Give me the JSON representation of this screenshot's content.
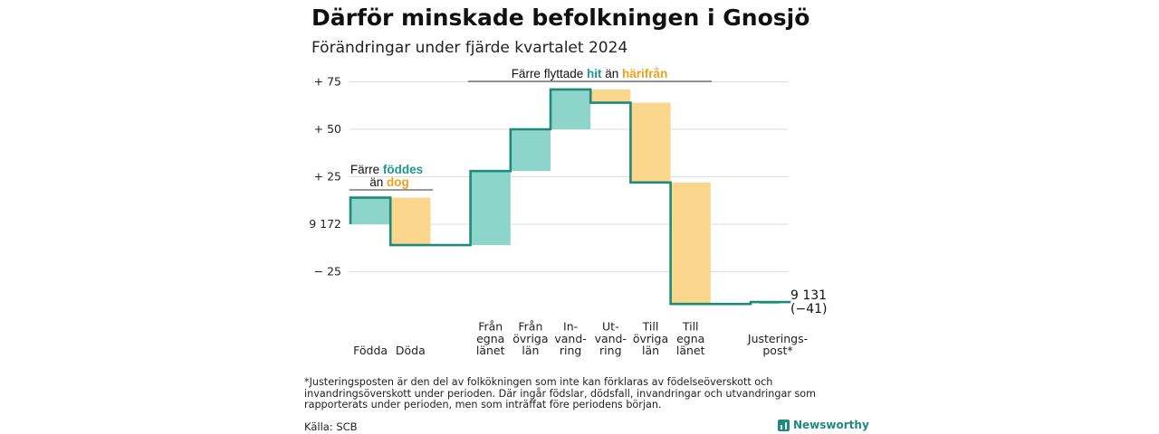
{
  "header": {
    "title": "Därför minskade befolkningen i Gnosjö",
    "subtitle": "Förändringar under fjärde kvartalet 2024"
  },
  "colors": {
    "increase": "#8dd5cb",
    "decrease": "#fbd68d",
    "line": "#1d8a7a",
    "teal_text": "#1d9a8b",
    "orange_text": "#f0a11a",
    "grid": "#dddddd"
  },
  "annotations": {
    "births_deaths": {
      "line1_prefix": "Färre",
      "line1_highlight": "föddes",
      "line2_prefix": "än",
      "line2_highlight": "dog"
    },
    "migration": {
      "prefix": "Färre flyttade",
      "highlight1": "hit",
      "middle": "än",
      "highlight2": "härifrån"
    }
  },
  "end_label": {
    "value": "9 131",
    "change": "(−41)"
  },
  "footer": {
    "footnote": "*Justeringsposten är den del av folkökningen som inte kan förklaras av födelseöverskott och invandringsöverskott under perioden. Där ingår födslar, dödsfall, invandringar och utvandringar som rapporterats under perioden, men som inträffat före periodens början.",
    "source": "Källa: SCB",
    "brand": "Newsworthy"
  },
  "chart_data": {
    "type": "waterfall",
    "start_value": 9172,
    "end_value": 9131,
    "total_change": -41,
    "y_ticks": [
      {
        "value": 75,
        "label": "+ 75"
      },
      {
        "value": 50,
        "label": "+ 50"
      },
      {
        "value": 25,
        "label": "+ 25"
      },
      {
        "value": 0,
        "label": "9 172"
      },
      {
        "value": -25,
        "label": "− 25"
      }
    ],
    "ylim": [
      -42,
      80
    ],
    "grid": true,
    "steps": [
      {
        "key": "fodda",
        "label": [
          "Födda"
        ],
        "change": 14,
        "kind": "increase"
      },
      {
        "key": "doda",
        "label": [
          "Döda"
        ],
        "change": -25,
        "kind": "decrease"
      },
      {
        "key": "gap",
        "label": [],
        "change": 0,
        "kind": "gap"
      },
      {
        "key": "fran_egna",
        "label": [
          "Från",
          "egna",
          "länet"
        ],
        "change": 39,
        "kind": "increase"
      },
      {
        "key": "fran_ovriga",
        "label": [
          "Från",
          "övriga",
          "län"
        ],
        "change": 22,
        "kind": "increase"
      },
      {
        "key": "invandring",
        "label": [
          "In-",
          "vand-",
          "ring"
        ],
        "change": 21,
        "kind": "increase"
      },
      {
        "key": "utvandring",
        "label": [
          "Ut-",
          "vand-",
          "ring"
        ],
        "change": -7,
        "kind": "decrease"
      },
      {
        "key": "till_ovriga",
        "label": [
          "Till",
          "övriga",
          "län"
        ],
        "change": -42,
        "kind": "decrease"
      },
      {
        "key": "till_egna",
        "label": [
          "Till",
          "egna",
          "länet"
        ],
        "change": -64,
        "kind": "decrease"
      },
      {
        "key": "gap2",
        "label": [],
        "change": 0,
        "kind": "gap"
      },
      {
        "key": "justering",
        "label": [
          "Justerings-",
          "post*"
        ],
        "change": 1,
        "kind": "increase"
      }
    ]
  }
}
